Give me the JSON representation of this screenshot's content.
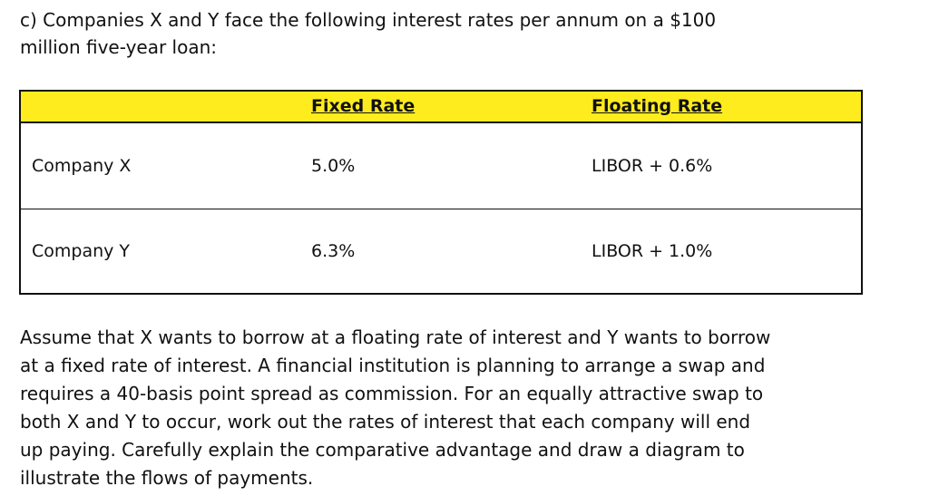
{
  "intro": {
    "lines": [
      "c) Companies X and Y face the following interest rates per annum on a $100",
      "million five-year loan:"
    ]
  },
  "table": {
    "headers": [
      "Fixed Rate",
      "Floating Rate"
    ],
    "rows": [
      [
        "Company X",
        "5.0%",
        "LIBOR + 0.6%"
      ],
      [
        "Company Y",
        "6.3%",
        "LIBOR + 1.0%"
      ]
    ]
  },
  "question": {
    "lines": [
      "Assume that X wants to borrow at a floating rate of interest and Y wants to borrow",
      "at a fixed rate of interest. A financial institution is planning to arrange a swap and",
      "requires a 40-basis point spread as commission. For an equally attractive swap to",
      "both X and Y to occur, work out the rates of interest that each company will end",
      "up paying. Carefully explain the comparative advantage and draw a diagram to",
      "illustrate the flows of payments."
    ]
  }
}
